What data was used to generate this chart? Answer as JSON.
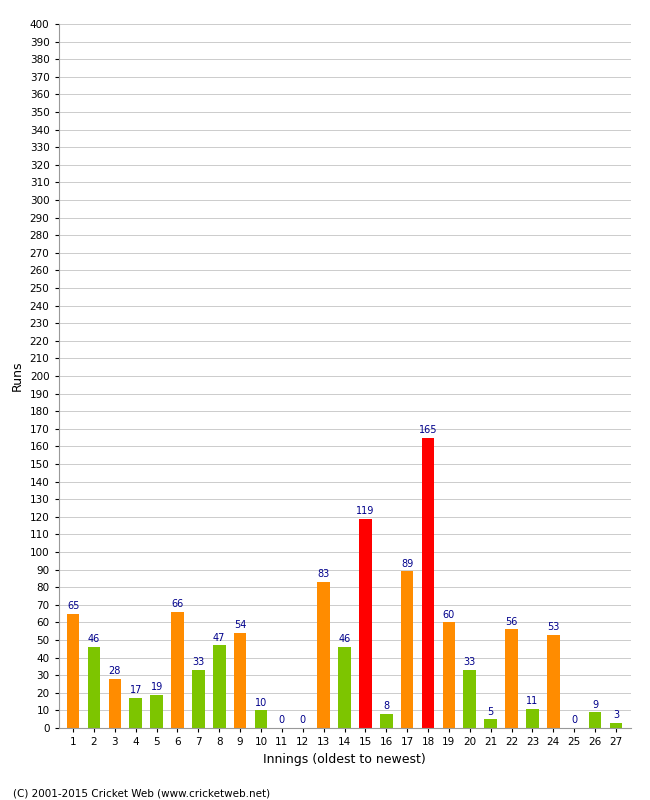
{
  "xlabel": "Innings (oldest to newest)",
  "ylabel": "Runs",
  "ylim": [
    0,
    400
  ],
  "ytick_step": 10,
  "values": [
    65,
    46,
    28,
    17,
    19,
    66,
    33,
    47,
    54,
    10,
    0,
    0,
    83,
    46,
    119,
    8,
    89,
    165,
    60,
    33,
    5,
    56,
    11,
    53,
    0,
    9,
    3
  ],
  "colors": [
    "#FF8C00",
    "#7DC500",
    "#FF8C00",
    "#7DC500",
    "#7DC500",
    "#FF8C00",
    "#7DC500",
    "#7DC500",
    "#FF8C00",
    "#7DC500",
    "#FF8C00",
    "#7DC500",
    "#FF8C00",
    "#7DC500",
    "#FF0000",
    "#7DC500",
    "#FF8C00",
    "#FF0000",
    "#FF8C00",
    "#7DC500",
    "#7DC500",
    "#FF8C00",
    "#7DC500",
    "#FF8C00",
    "#7DC500",
    "#7DC500",
    "#7DC500"
  ],
  "label_color": "#00008B",
  "background_color": "#FFFFFF",
  "grid_color": "#CCCCCC",
  "footer": "(C) 2001-2015 Cricket Web (www.cricketweb.net)"
}
